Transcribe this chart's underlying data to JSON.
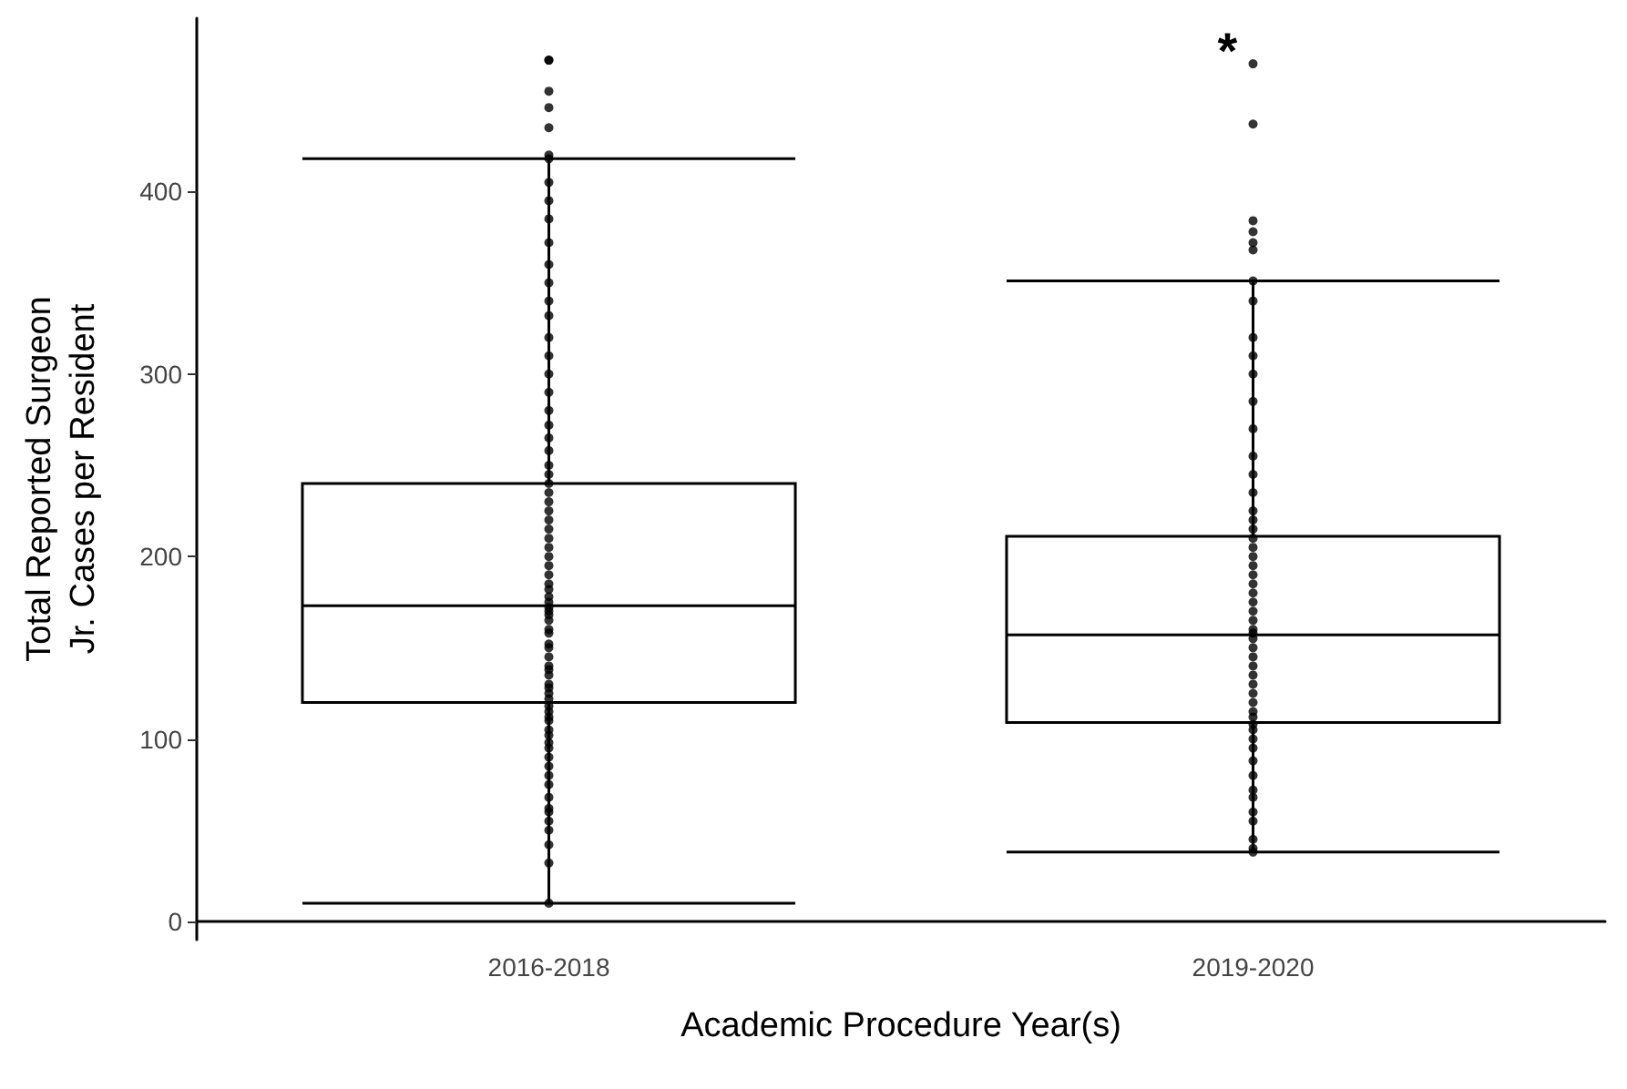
{
  "chart_data": {
    "type": "box",
    "xlabel": "Academic Procedure Year(s)",
    "ylabel": "Total Reported Surgeon\nJr. Cases per Resident",
    "categories": [
      "2016-2018",
      "2019-2020"
    ],
    "color": "#000000",
    "boxes": [
      {
        "low": 10,
        "q1": 120,
        "median": 173,
        "q3": 240,
        "high": 418
      },
      {
        "low": 38,
        "q1": 109,
        "median": 157,
        "q3": 211,
        "high": 351
      }
    ],
    "series": [
      {
        "type": "scatter",
        "color": "#000000",
        "x": [
          "2016-2018",
          "2016-2018",
          "2016-2018",
          "2016-2018",
          "2016-2018",
          "2016-2018",
          "2016-2018",
          "2016-2018",
          "2016-2018",
          "2016-2018",
          "2016-2018",
          "2016-2018",
          "2016-2018",
          "2016-2018",
          "2016-2018",
          "2016-2018",
          "2016-2018",
          "2016-2018",
          "2016-2018",
          "2016-2018",
          "2016-2018",
          "2016-2018",
          "2016-2018",
          "2016-2018",
          "2016-2018",
          "2016-2018",
          "2016-2018",
          "2016-2018",
          "2016-2018",
          "2016-2018",
          "2016-2018",
          "2016-2018",
          "2016-2018",
          "2016-2018",
          "2016-2018",
          "2016-2018",
          "2016-2018",
          "2016-2018",
          "2016-2018",
          "2016-2018",
          "2016-2018",
          "2016-2018",
          "2016-2018",
          "2016-2018",
          "2016-2018",
          "2016-2018",
          "2016-2018",
          "2016-2018",
          "2016-2018",
          "2016-2018",
          "2016-2018",
          "2016-2018",
          "2016-2018",
          "2016-2018",
          "2016-2018",
          "2016-2018",
          "2016-2018",
          "2016-2018",
          "2016-2018",
          "2016-2018",
          "2016-2018",
          "2016-2018",
          "2016-2018",
          "2016-2018",
          "2016-2018",
          "2016-2018",
          "2016-2018",
          "2016-2018",
          "2016-2018",
          "2016-2018",
          "2016-2018",
          "2016-2018",
          "2016-2018",
          "2016-2018",
          "2016-2018",
          "2016-2018"
        ],
        "values": [
          10,
          32,
          42,
          50,
          55,
          60,
          62,
          68,
          75,
          80,
          85,
          90,
          95,
          98,
          102,
          105,
          110,
          112,
          115,
          118,
          122,
          125,
          128,
          130,
          135,
          138,
          140,
          145,
          150,
          152,
          158,
          160,
          165,
          168,
          170,
          172,
          175,
          178,
          182,
          185,
          190,
          195,
          200,
          205,
          210,
          215,
          220,
          225,
          230,
          235,
          240,
          245,
          250,
          258,
          265,
          272,
          280,
          290,
          300,
          310,
          320,
          332,
          340,
          350,
          360,
          372,
          385,
          395,
          405,
          418,
          420,
          435,
          446,
          455,
          472,
          472
        ]
      },
      {
        "type": "scatter",
        "color": "#000000",
        "x": [
          "2019-2020",
          "2019-2020",
          "2019-2020",
          "2019-2020",
          "2019-2020",
          "2019-2020",
          "2019-2020",
          "2019-2020",
          "2019-2020",
          "2019-2020",
          "2019-2020",
          "2019-2020",
          "2019-2020",
          "2019-2020",
          "2019-2020",
          "2019-2020",
          "2019-2020",
          "2019-2020",
          "2019-2020",
          "2019-2020",
          "2019-2020",
          "2019-2020",
          "2019-2020",
          "2019-2020",
          "2019-2020",
          "2019-2020",
          "2019-2020",
          "2019-2020",
          "2019-2020",
          "2019-2020",
          "2019-2020",
          "2019-2020",
          "2019-2020",
          "2019-2020",
          "2019-2020",
          "2019-2020",
          "2019-2020",
          "2019-2020",
          "2019-2020",
          "2019-2020",
          "2019-2020",
          "2019-2020",
          "2019-2020",
          "2019-2020",
          "2019-2020",
          "2019-2020",
          "2019-2020",
          "2019-2020",
          "2019-2020",
          "2019-2020",
          "2019-2020",
          "2019-2020",
          "2019-2020",
          "2019-2020"
        ],
        "values": [
          38,
          40,
          45,
          55,
          60,
          68,
          72,
          80,
          88,
          95,
          100,
          105,
          108,
          112,
          115,
          120,
          125,
          130,
          135,
          140,
          145,
          150,
          155,
          158,
          160,
          165,
          170,
          175,
          180,
          185,
          190,
          195,
          200,
          205,
          210,
          215,
          220,
          225,
          235,
          245,
          255,
          270,
          285,
          300,
          310,
          320,
          340,
          351,
          368,
          372,
          378,
          384,
          437,
          470
        ]
      }
    ],
    "ylim": [
      -10,
      495
    ],
    "yticks": [
      0,
      100,
      200,
      300,
      400
    ],
    "grid": false,
    "marker": "circle",
    "annotations": [
      "*"
    ]
  }
}
